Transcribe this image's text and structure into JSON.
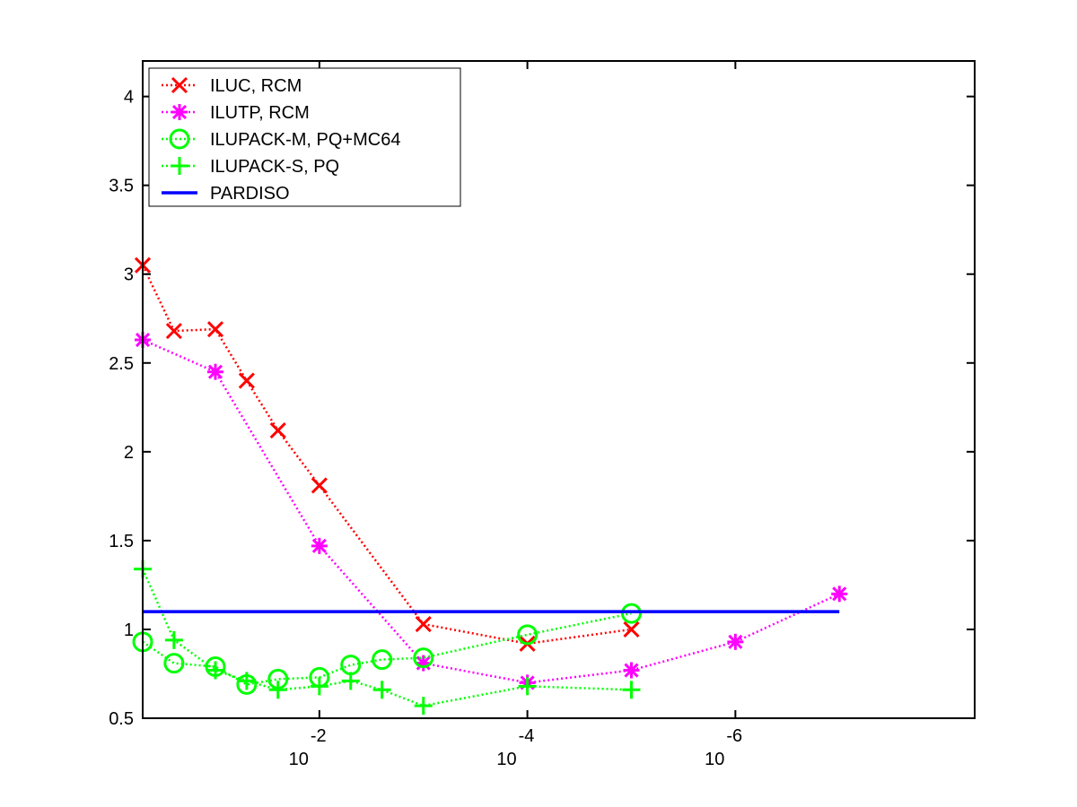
{
  "chart_data": {
    "type": "line",
    "title": "",
    "xlabel": "",
    "ylabel": "",
    "x_scale": "log",
    "x_reversed": true,
    "xlim": [
      0.5,
      5e-09
    ],
    "ylim": [
      0.5,
      4.2
    ],
    "y_ticks": [
      {
        "value": 0.5,
        "label": "0.5"
      },
      {
        "value": 1,
        "label": "1"
      },
      {
        "value": 1.5,
        "label": "1.5"
      },
      {
        "value": 2,
        "label": "2"
      },
      {
        "value": 2.5,
        "label": "2.5"
      },
      {
        "value": 3,
        "label": "3"
      },
      {
        "value": 3.5,
        "label": "3.5"
      },
      {
        "value": 4,
        "label": "4"
      }
    ],
    "x_ticks": [
      {
        "value": 0.01,
        "base": "10",
        "exp": "-2"
      },
      {
        "value": 0.0001,
        "base": "10",
        "exp": "-4"
      },
      {
        "value": 1e-06,
        "base": "10",
        "exp": "-6"
      }
    ],
    "grid": false,
    "legend_position": "top-left",
    "series": [
      {
        "name": "ILUC, RCM",
        "color": "#ff0000",
        "marker": "x",
        "line": "dotted",
        "x": [
          0.5,
          0.25,
          0.1,
          0.05,
          0.025,
          0.01,
          0.001,
          0.0001,
          1e-05
        ],
        "y": [
          3.05,
          2.68,
          2.69,
          2.4,
          2.12,
          1.81,
          1.03,
          0.92,
          1.0
        ]
      },
      {
        "name": "ILUTP, RCM",
        "color": "#ff00ff",
        "marker": "asterisk",
        "line": "dotted",
        "x": [
          0.5,
          0.1,
          0.01,
          0.001,
          0.0001,
          1e-05,
          1e-06,
          1e-07
        ],
        "y": [
          2.63,
          2.45,
          1.47,
          0.81,
          0.7,
          0.77,
          0.93,
          1.2
        ]
      },
      {
        "name": "ILUPACK-M, PQ+MC64",
        "color": "#00ff00",
        "marker": "circle",
        "line": "dotted",
        "x": [
          0.5,
          0.25,
          0.1,
          0.05,
          0.025,
          0.01,
          0.005,
          0.0025,
          0.001,
          0.0001,
          1e-05
        ],
        "y": [
          0.93,
          0.81,
          0.79,
          0.69,
          0.72,
          0.73,
          0.8,
          0.83,
          0.84,
          0.97,
          1.09
        ]
      },
      {
        "name": "ILUPACK-S, PQ",
        "color": "#00ff00",
        "marker": "plus",
        "line": "dotted",
        "x": [
          0.5,
          0.25,
          0.1,
          0.05,
          0.025,
          0.01,
          0.005,
          0.0025,
          0.001,
          0.0001,
          1e-05
        ],
        "y": [
          1.34,
          0.94,
          0.77,
          0.71,
          0.66,
          0.68,
          0.71,
          0.66,
          0.57,
          0.68,
          0.66
        ]
      },
      {
        "name": "PARDISO",
        "color": "#0000ff",
        "marker": "none",
        "line": "solid",
        "x": [
          0.5,
          1e-07
        ],
        "y": [
          1.1,
          1.1
        ]
      }
    ]
  }
}
